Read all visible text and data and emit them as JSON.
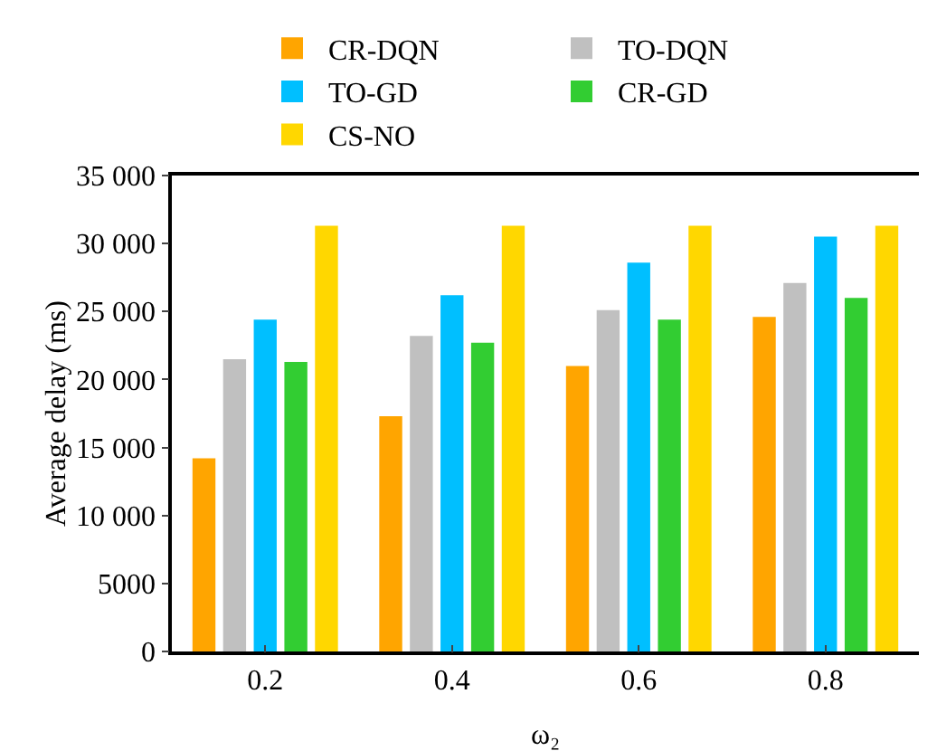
{
  "chart_data": {
    "type": "bar",
    "categories": [
      "0.2",
      "0.4",
      "0.6",
      "0.8"
    ],
    "xlabel": "ω₂",
    "ylabel": "Average delay (ms)",
    "series": [
      {
        "name": "CR-DQN",
        "color": "#ffa500",
        "values": [
          14200,
          17300,
          21000,
          24600
        ]
      },
      {
        "name": "TO-DQN",
        "color": "#c0c0c0",
        "values": [
          21500,
          23200,
          25100,
          27100
        ]
      },
      {
        "name": "TO-GD",
        "color": "#00bfff",
        "values": [
          24400,
          26200,
          28600,
          30500
        ]
      },
      {
        "name": "CR-GD",
        "color": "#32cd32",
        "values": [
          21300,
          22700,
          24400,
          26000
        ]
      },
      {
        "name": "CS-NO",
        "color": "#ffd700",
        "values": [
          31300,
          31300,
          31300,
          31300
        ]
      }
    ],
    "ylim": [
      0,
      35000
    ],
    "yticks": [
      0,
      5000,
      {
        "value": 10000,
        "label": "10 000"
      },
      {
        "value": 15000,
        "label": "15 000"
      },
      {
        "value": 20000,
        "label": "20 000"
      },
      {
        "value": 25000,
        "label": "25 000"
      },
      {
        "value": 30000,
        "label": "30 000"
      },
      {
        "value": 35000,
        "label": "35 000"
      }
    ],
    "grid": false,
    "legend": "top"
  }
}
